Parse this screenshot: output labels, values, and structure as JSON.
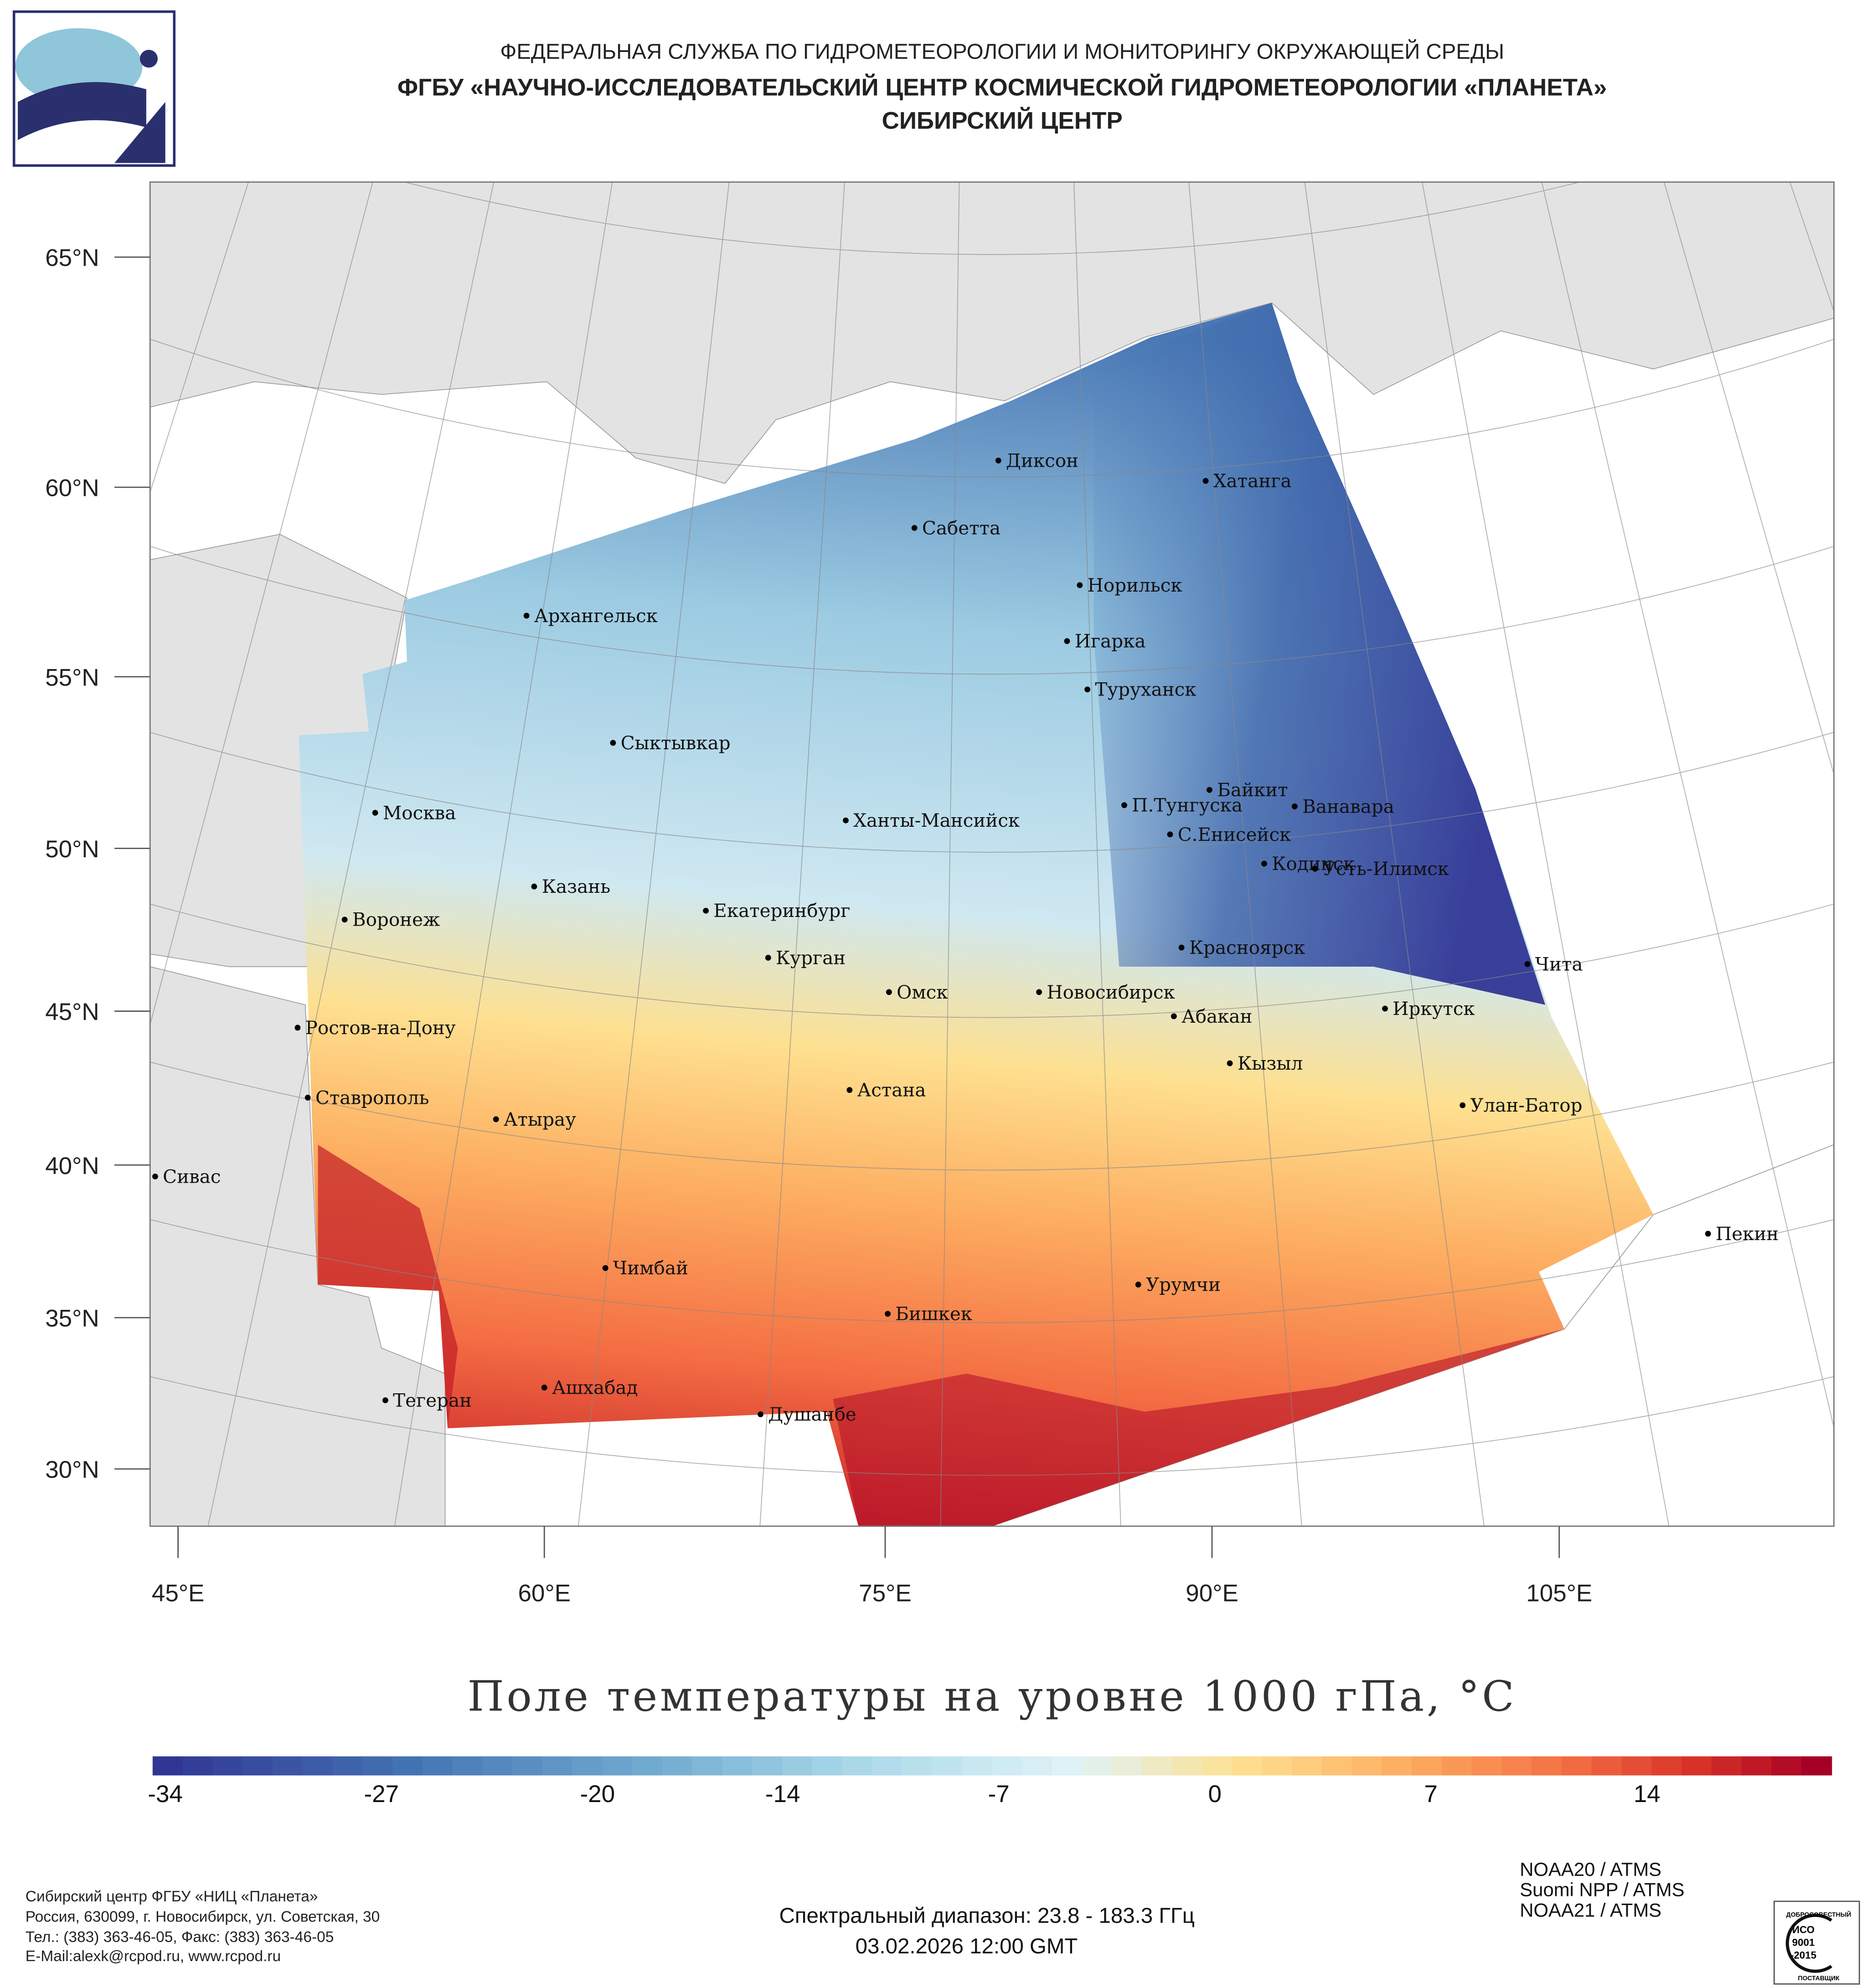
{
  "header": {
    "line1": "ФЕДЕРАЛЬНАЯ СЛУЖБА ПО ГИДРОМЕТЕОРОЛОГИИ И МОНИТОРИНГУ ОКРУЖАЮЩЕЙ СРЕДЫ",
    "line2": "ФГБУ «НАУЧНО-ИССЛЕДОВАТЕЛЬСКИЙ ЦЕНТР КОСМИЧЕСКОЙ ГИДРОМЕТЕОРОЛОГИИ «ПЛАНЕТА»",
    "line3": "СИБИРСКИЙ ЦЕНТР"
  },
  "map": {
    "lat_labels": [
      "65°N",
      "60°N",
      "55°N",
      "50°N",
      "45°N",
      "40°N",
      "35°N",
      "30°N"
    ],
    "lon_labels": [
      "45°E",
      "60°E",
      "75°E",
      "90°E",
      "105°E"
    ],
    "cities": [
      "Диксон",
      "Хатанга",
      "Сабетта",
      "Норильск",
      "Архангельск",
      "Игарка",
      "Туруханск",
      "Сыктывкар",
      "Байкит",
      "П.Тунгуска",
      "Ванавара",
      "Москва",
      "Ханты-Мансийск",
      "С.Енисейск",
      "Кодинск",
      "Усть-Илимск",
      "Казань",
      "Екатеринбург",
      "Воронеж",
      "Красноярск",
      "Курган",
      "Чита",
      "Омск",
      "Новосибирск",
      "Иркутск",
      "Абакан",
      "Ростов-на-Дону",
      "Кызыл",
      "Астана",
      "Ставрополь",
      "Улан-Батор",
      "Атырау",
      "Сивас",
      "Пекин",
      "Чимбай",
      "Урумчи",
      "Бишкек",
      "Ашхабад",
      "Тегеран",
      "Душанбе"
    ],
    "colors": {
      "land": "#e3e3e3",
      "sea": "#ffffff",
      "cold": "#313695",
      "warm": "#a50026"
    }
  },
  "title": "Поле температуры на уровне 1000 гПа, °C",
  "colorbar": {
    "ticks": [
      "-34",
      "-27",
      "-20",
      "-14",
      "-7",
      "0",
      "7",
      "14"
    ],
    "min": -34,
    "max": 20
  },
  "footer": {
    "org": [
      "Сибирский центр ФГБУ «НИЦ «Планета»",
      "Россия, 630099, г. Новосибирск, ул. Советская, 30",
      "Тел.: (383) 363-46-05, Факс: (383) 363-46-05",
      "E-Mail:alexk@rcpod.ru, www.rcpod.ru"
    ],
    "spectral": "Спектральный диапазон: 23.8 - 183.3 ГГц",
    "datetime": "03.02.2026 12:00 GMT",
    "satellites": [
      "NOAA20 / ATMS",
      "Suomi NPP / ATMS",
      "NOAA21 / ATMS"
    ],
    "iso": {
      "top": "ДОБРОСОВЕСТНЫЙ",
      "mid1": "ИСО",
      "mid2": "9001",
      "mid3": "-2015",
      "bottom": "ПОСТАВЩИК"
    }
  }
}
